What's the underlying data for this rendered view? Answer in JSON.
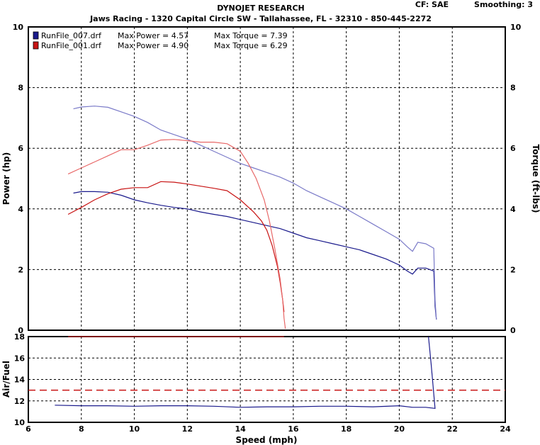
{
  "header": {
    "title": "DYNOJET RESEARCH",
    "subtitle": "Jaws Racing - 1320 Capital Circle SW - Tallahassee, FL - 32310 - 850-445-2272",
    "cf_label": "CF: SAE",
    "smoothing_label": "Smoothing: 3"
  },
  "legend": [
    {
      "name": "RunFile_007.drf",
      "power_label": "Max Power = 4.57",
      "torque_label": "Max Torque = 7.39",
      "color": "#1a1a8c"
    },
    {
      "name": "RunFile_001.drf",
      "power_label": "Max Power = 4.90",
      "torque_label": "Max Torque = 6.29",
      "color": "#c81414"
    }
  ],
  "chart_data": [
    {
      "type": "line",
      "title": "DYNOJET RESEARCH",
      "xlabel": "Speed (mph)",
      "ylabel": "Power (hp)",
      "y2label": "Torque (ft-lbs)",
      "xlim": [
        6,
        24
      ],
      "ylim": [
        0,
        10
      ],
      "y2lim": [
        0,
        10
      ],
      "x_ticks": [
        6,
        8,
        10,
        12,
        14,
        16,
        18,
        20,
        22,
        24
      ],
      "y_ticks": [
        0,
        2,
        4,
        6,
        8,
        10
      ],
      "grid": true,
      "legend_position": "top-left",
      "series": [
        {
          "name": "RunFile_007.drf",
          "measure": "power",
          "color": "#1a1a8c",
          "x": [
            7.7,
            8.0,
            8.5,
            9.0,
            9.5,
            10.0,
            10.5,
            11.0,
            11.5,
            12.0,
            12.5,
            13.0,
            13.5,
            14.0,
            14.5,
            15.0,
            15.5,
            16.0,
            16.5,
            17.0,
            17.5,
            18.0,
            18.5,
            19.0,
            19.5,
            20.0,
            20.3,
            20.5,
            20.7,
            21.0,
            21.3,
            21.35,
            21.4
          ],
          "y": [
            4.52,
            4.57,
            4.57,
            4.55,
            4.45,
            4.3,
            4.2,
            4.12,
            4.05,
            4.0,
            3.9,
            3.82,
            3.75,
            3.65,
            3.55,
            3.45,
            3.35,
            3.2,
            3.05,
            2.95,
            2.85,
            2.75,
            2.65,
            2.5,
            2.35,
            2.15,
            1.95,
            1.85,
            2.05,
            2.05,
            1.95,
            0.8,
            0.35
          ]
        },
        {
          "name": "RunFile_007.drf",
          "measure": "torque",
          "color": "#7a7ac8",
          "x": [
            7.7,
            8.0,
            8.5,
            9.0,
            9.5,
            10.0,
            10.5,
            11.0,
            11.5,
            12.0,
            12.5,
            13.0,
            13.5,
            14.0,
            14.5,
            15.0,
            15.5,
            16.0,
            16.5,
            17.0,
            17.5,
            18.0,
            18.5,
            19.0,
            19.5,
            20.0,
            20.3,
            20.5,
            20.7,
            21.0,
            21.3,
            21.35,
            21.4
          ],
          "y": [
            7.3,
            7.36,
            7.39,
            7.35,
            7.2,
            7.05,
            6.85,
            6.6,
            6.45,
            6.3,
            6.1,
            5.9,
            5.7,
            5.5,
            5.35,
            5.2,
            5.05,
            4.85,
            4.6,
            4.4,
            4.2,
            4.0,
            3.75,
            3.5,
            3.25,
            3.0,
            2.75,
            2.6,
            2.9,
            2.85,
            2.7,
            1.0,
            0.35
          ]
        },
        {
          "name": "RunFile_001.drf",
          "measure": "power",
          "color": "#c81414",
          "x": [
            7.5,
            8.0,
            8.5,
            9.0,
            9.5,
            10.0,
            10.5,
            11.0,
            11.5,
            12.0,
            12.5,
            13.0,
            13.5,
            14.0,
            14.5,
            14.8,
            15.0,
            15.2,
            15.4,
            15.5,
            15.6,
            15.65
          ],
          "y": [
            3.82,
            4.05,
            4.3,
            4.5,
            4.65,
            4.7,
            4.7,
            4.9,
            4.88,
            4.82,
            4.75,
            4.68,
            4.6,
            4.3,
            3.9,
            3.6,
            3.3,
            2.8,
            2.1,
            1.6,
            1.0,
            0.6
          ]
        },
        {
          "name": "RunFile_001.drf",
          "measure": "torque",
          "color": "#e86868",
          "x": [
            7.5,
            8.0,
            8.5,
            9.0,
            9.5,
            10.0,
            10.5,
            11.0,
            11.5,
            12.0,
            12.5,
            13.0,
            13.5,
            14.0,
            14.3,
            14.6,
            14.9,
            15.1,
            15.3,
            15.5,
            15.6,
            15.65,
            15.7
          ],
          "y": [
            5.15,
            5.35,
            5.55,
            5.75,
            5.95,
            5.95,
            6.1,
            6.27,
            6.29,
            6.25,
            6.2,
            6.2,
            6.15,
            5.9,
            5.5,
            5.0,
            4.3,
            3.6,
            2.7,
            1.7,
            1.0,
            0.4,
            0.05
          ]
        }
      ]
    },
    {
      "type": "line",
      "xlabel": "Speed (mph)",
      "ylabel": "Air/Fuel",
      "xlim": [
        6,
        24
      ],
      "ylim": [
        10,
        18
      ],
      "x_ticks": [
        6,
        8,
        10,
        12,
        14,
        16,
        18,
        20,
        22,
        24
      ],
      "y_ticks": [
        10,
        12,
        14,
        16,
        18
      ],
      "grid": true,
      "reference_line": {
        "y": 13,
        "style": "dashed",
        "color": "#c81414"
      },
      "series": [
        {
          "name": "RunFile_007.drf",
          "measure": "air_fuel",
          "color": "#1a1a8c",
          "x": [
            7.0,
            8.0,
            9.0,
            10.0,
            11.0,
            12.0,
            13.0,
            14.0,
            15.0,
            16.0,
            17.0,
            18.0,
            19.0,
            20.0,
            20.5,
            21.0,
            21.35,
            21.2,
            21.1
          ],
          "y": [
            11.6,
            11.55,
            11.55,
            11.5,
            11.55,
            11.55,
            11.5,
            11.4,
            11.45,
            11.45,
            11.5,
            11.5,
            11.45,
            11.55,
            11.4,
            11.4,
            11.3,
            15.5,
            18.0
          ]
        },
        {
          "name": "RunFile_001.drf",
          "measure": "air_fuel",
          "color": "#c81414",
          "x": [
            7.5,
            15.65
          ],
          "y": [
            18.0,
            18.0
          ]
        }
      ]
    }
  ]
}
